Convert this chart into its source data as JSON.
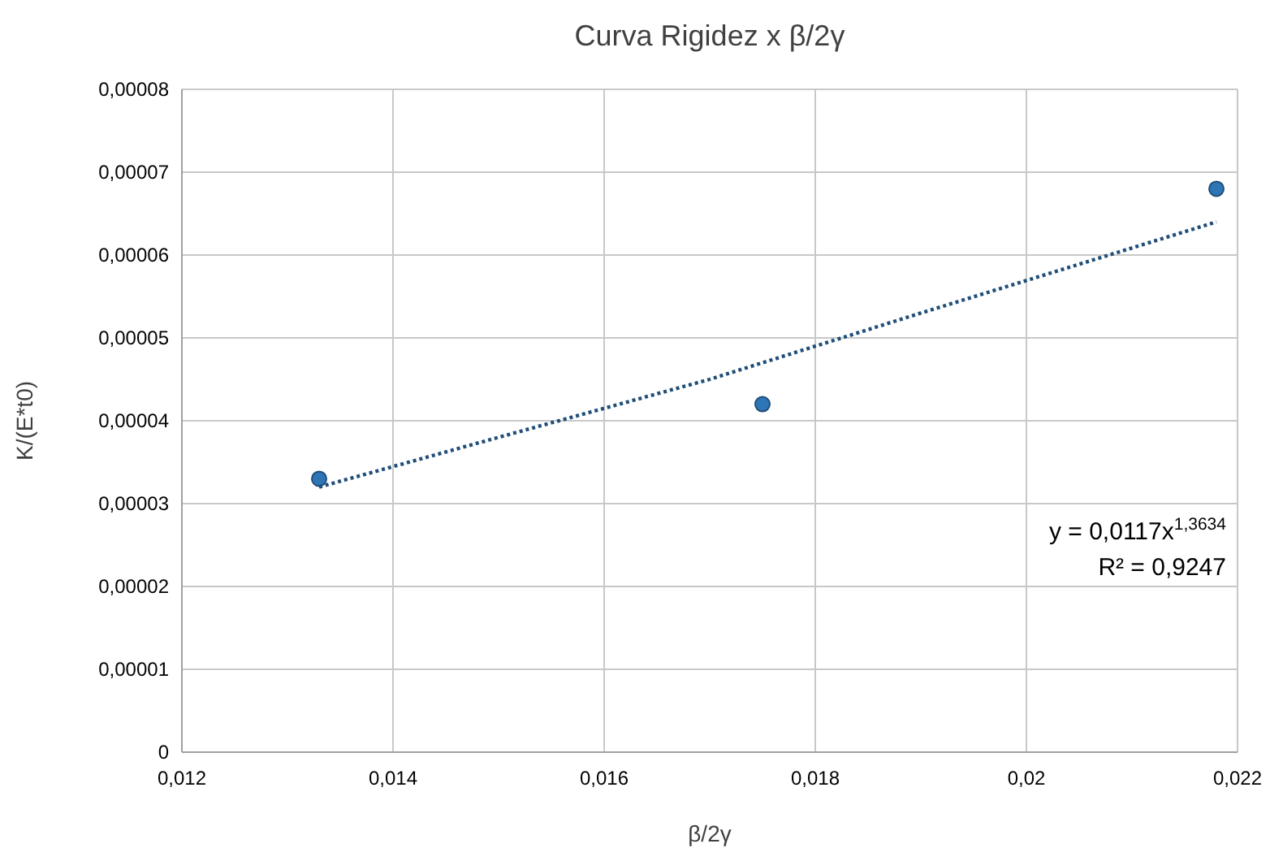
{
  "chart_data": {
    "type": "scatter",
    "title": "Curva Rigidez x β/2γ",
    "xlabel": "β/2γ",
    "ylabel": "K/(E*t0)",
    "x": [
      0.0133,
      0.0175,
      0.0218
    ],
    "series": [
      {
        "color": "#2e75b6",
        "marker": "circle",
        "values": [
          3.3e-05,
          4.2e-05,
          6.8e-05
        ]
      },
      {
        "type": "line",
        "color": "#1f4e79",
        "x": [
          0.0133,
          0.015,
          0.017,
          0.019,
          0.0218
        ],
        "values": [
          3.2e-05,
          3.8e-05,
          4.5e-05,
          5.3e-05,
          6.4e-05
        ],
        "line_style": "dotted"
      }
    ],
    "xlim": [
      0.012,
      0.022
    ],
    "xticks": [
      {
        "value": 0.012,
        "label": "0,012"
      },
      {
        "value": 0.014,
        "label": "0,014"
      },
      {
        "value": 0.016,
        "label": "0,016"
      },
      {
        "value": 0.018,
        "label": "0,018"
      },
      {
        "value": 0.02,
        "label": "0,02"
      },
      {
        "value": 0.022,
        "label": "0,022"
      }
    ],
    "ylim": [
      0,
      8e-05
    ],
    "yticks": [
      {
        "value": 0,
        "label": "0"
      },
      {
        "value": 1e-05,
        "label": "0,00001"
      },
      {
        "value": 2e-05,
        "label": "0,00002"
      },
      {
        "value": 3e-05,
        "label": "0,00003"
      },
      {
        "value": 4e-05,
        "label": "0,00004"
      },
      {
        "value": 5e-05,
        "label": "0,00005"
      },
      {
        "value": 6e-05,
        "label": "0,00006"
      },
      {
        "value": 7e-05,
        "label": "0,00007"
      },
      {
        "value": 8e-05,
        "label": "0,00008"
      }
    ],
    "grid": true,
    "annotations": [
      "y = 0,0117x$^{1,3634}$",
      "R² = 0,9247"
    ]
  }
}
